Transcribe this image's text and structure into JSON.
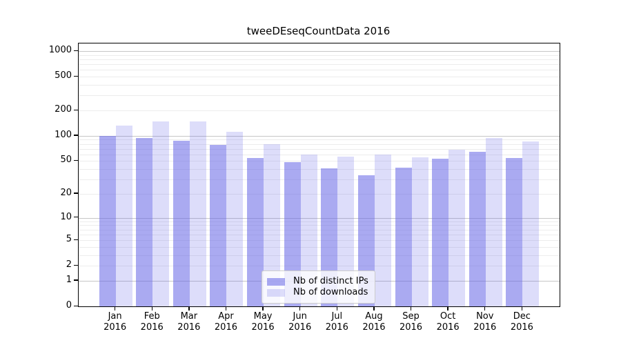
{
  "title": "tweeDEseqCountData 2016",
  "chart_data": {
    "type": "bar",
    "title": "tweeDEseqCountData 2016",
    "categories": [
      "Jan 2016",
      "Feb 2016",
      "Mar 2016",
      "Apr 2016",
      "May 2016",
      "Jun 2016",
      "Jul 2016",
      "Aug 2016",
      "Sep 2016",
      "Oct 2016",
      "Nov 2016",
      "Dec 2016"
    ],
    "series": [
      {
        "name": "Nb of distinct IPs",
        "color": "rgba(100,100,230,0.55)",
        "values": [
          100,
          94,
          88,
          78,
          54,
          49,
          41,
          34,
          42,
          53,
          65,
          54
        ]
      },
      {
        "name": "Nb of downloads",
        "color": "rgba(100,100,230,0.22)",
        "values": [
          133,
          147,
          148,
          112,
          80,
          60,
          57,
          60,
          56,
          68,
          94,
          86
        ]
      }
    ],
    "y_scale": "log1p",
    "y_ticks": [
      0,
      1,
      2,
      5,
      10,
      20,
      50,
      100,
      200,
      500,
      1000
    ],
    "ylim": [
      0,
      1230
    ],
    "xlabel": "",
    "ylabel": "",
    "grid": true,
    "legend_position": "lower center"
  },
  "colors": {
    "bar_distinct_ips": "rgba(100,100,230,0.55)",
    "bar_downloads": "rgba(100,100,230,0.22)",
    "grid_major": "#c6c6c6",
    "grid_minor": "#ececec",
    "axis": "#000000",
    "legend_border": "#cccccc"
  }
}
